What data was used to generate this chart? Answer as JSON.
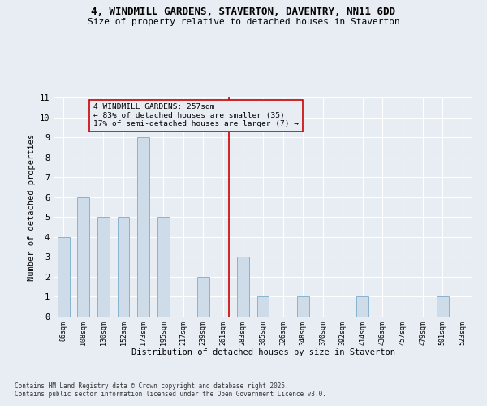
{
  "title": "4, WINDMILL GARDENS, STAVERTON, DAVENTRY, NN11 6DD",
  "subtitle": "Size of property relative to detached houses in Staverton",
  "xlabel": "Distribution of detached houses by size in Staverton",
  "ylabel": "Number of detached properties",
  "footnote": "Contains HM Land Registry data © Crown copyright and database right 2025.\nContains public sector information licensed under the Open Government Licence v3.0.",
  "annotation_title": "4 WINDMILL GARDENS: 257sqm",
  "annotation_line1": "← 83% of detached houses are smaller (35)",
  "annotation_line2": "17% of semi-detached houses are larger (7) →",
  "bar_labels": [
    "86sqm",
    "108sqm",
    "130sqm",
    "152sqm",
    "173sqm",
    "195sqm",
    "217sqm",
    "239sqm",
    "261sqm",
    "283sqm",
    "305sqm",
    "326sqm",
    "348sqm",
    "370sqm",
    "392sqm",
    "414sqm",
    "436sqm",
    "457sqm",
    "479sqm",
    "501sqm",
    "523sqm"
  ],
  "bar_values": [
    4,
    6,
    5,
    5,
    9,
    5,
    0,
    2,
    0,
    3,
    1,
    0,
    1,
    0,
    0,
    1,
    0,
    0,
    0,
    1,
    0
  ],
  "bar_color": "#cddce8",
  "bar_edge_color": "#7aaac8",
  "reference_line_index": 8,
  "reference_line_color": "#cc0000",
  "annotation_box_color": "#cc0000",
  "background_color": "#e8edf4",
  "grid_color": "#ffffff",
  "ylim": [
    0,
    11
  ],
  "yticks": [
    0,
    1,
    2,
    3,
    4,
    5,
    6,
    7,
    8,
    9,
    10,
    11
  ],
  "bar_width": 0.6
}
